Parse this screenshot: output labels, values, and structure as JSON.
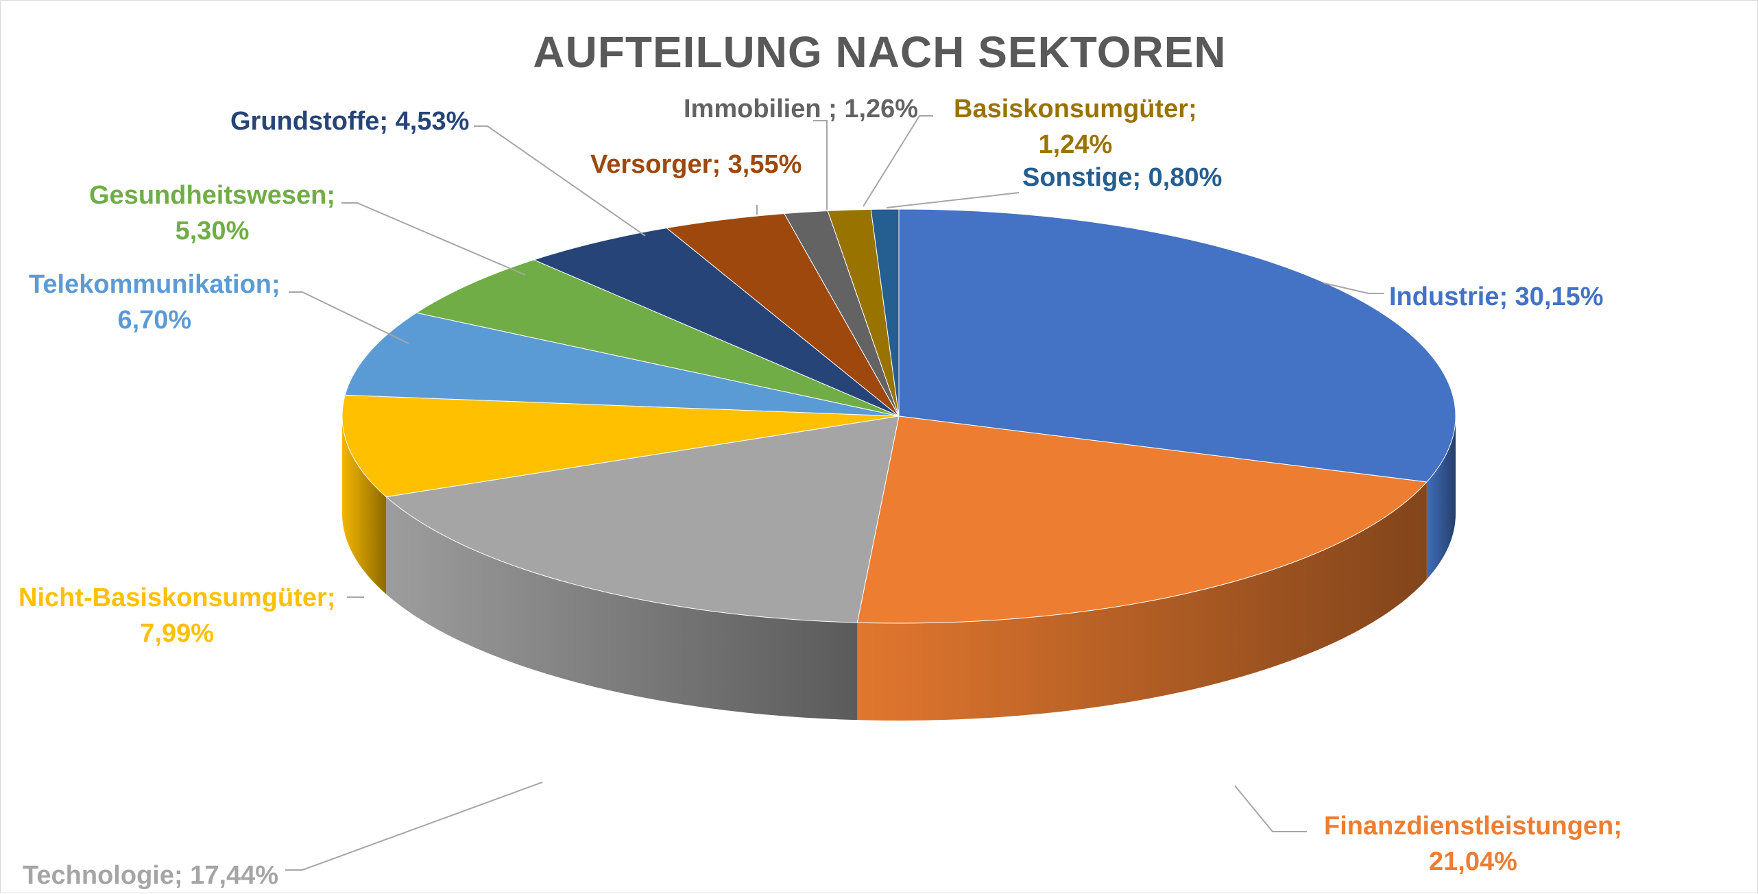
{
  "chart_data": {
    "type": "pie",
    "title": "AUFTEILUNG NACH SEKTOREN",
    "slices": [
      {
        "name": "Industrie",
        "value": 30.15,
        "color": "#4472C4",
        "line1": "Industrie; 30,15%",
        "line2": ""
      },
      {
        "name": "Finanzdienstleistungen",
        "value": 21.04,
        "color": "#ED7D31",
        "line1": "Finanzdienstleistungen;",
        "line2": "21,04%"
      },
      {
        "name": "Technologie",
        "value": 17.44,
        "color": "#A5A5A5",
        "line1": "Technologie; 17,44%",
        "line2": ""
      },
      {
        "name": "Nicht-Basiskonsumgüter",
        "value": 7.99,
        "color": "#FFC000",
        "line1": "Nicht-Basiskonsumgüter;",
        "line2": "7,99%"
      },
      {
        "name": "Telekommunikation",
        "value": 6.7,
        "color": "#5B9BD5",
        "line1": "Telekommunikation;",
        "line2": "6,70%"
      },
      {
        "name": "Gesundheitswesen",
        "value": 5.3,
        "color": "#70AD47",
        "line1": "Gesundheitswesen;",
        "line2": "5,30%"
      },
      {
        "name": "Grundstoffe",
        "value": 4.53,
        "color": "#264478",
        "line1": "Grundstoffe; 4,53%",
        "line2": ""
      },
      {
        "name": "Versorger",
        "value": 3.55,
        "color": "#9E480E",
        "line1": "Versorger; 3,55%",
        "line2": ""
      },
      {
        "name": "Immobilien ",
        "value": 1.26,
        "color": "#636363",
        "line1": "Immobilien ; 1,26%",
        "line2": ""
      },
      {
        "name": "Basiskonsumgüter",
        "value": 1.24,
        "color": "#997300",
        "line1": "Basiskonsumgüter;",
        "line2": "1,24%"
      },
      {
        "name": "Sonstige",
        "value": 0.8,
        "color": "#255E91",
        "line1": "Sonstige; 0,80%",
        "line2": ""
      }
    ],
    "legend": "none",
    "data_labels": "outside with leader lines"
  }
}
